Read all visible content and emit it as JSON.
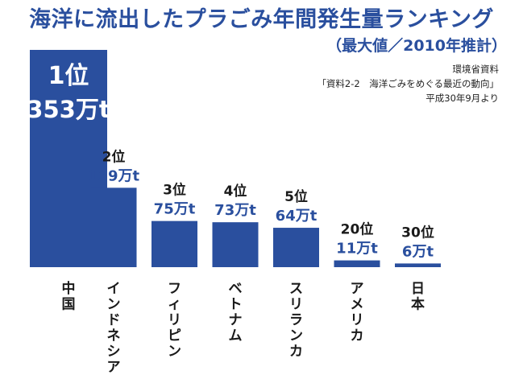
{
  "title": "海洋に流出したプラごみ年間発生量ランキング",
  "subtitle": "（最大値／2010年推計）",
  "source": [
    "環境省資料",
    "「資料2-2　海洋ごみをめぐる最近の動向」",
    "平成30年9月より"
  ],
  "colors": {
    "bar": "#2a4f9e",
    "rank_text": "#1a1a1a",
    "value_text": "#2a4f9e",
    "first_text": "#ffffff"
  },
  "chart_data": {
    "type": "bar",
    "title": "海洋に流出したプラごみ年間発生量ランキング",
    "subtitle": "（最大値／2010年推計）",
    "categories": [
      "中国",
      "インドネシア",
      "フィリピン",
      "ベトナム",
      "スリランカ",
      "アメリカ",
      "日本"
    ],
    "values": [
      353,
      129,
      75,
      73,
      64,
      11,
      6
    ],
    "unit": "万t",
    "ranks": [
      "1位",
      "2位",
      "3位",
      "4位",
      "5位",
      "20位",
      "30位"
    ],
    "value_labels": [
      "353万t",
      "129万t",
      "75万t",
      "73万t",
      "64万t",
      "11万t",
      "6万t"
    ],
    "ylim": [
      0,
      353
    ],
    "grid": false,
    "legend": "none"
  }
}
